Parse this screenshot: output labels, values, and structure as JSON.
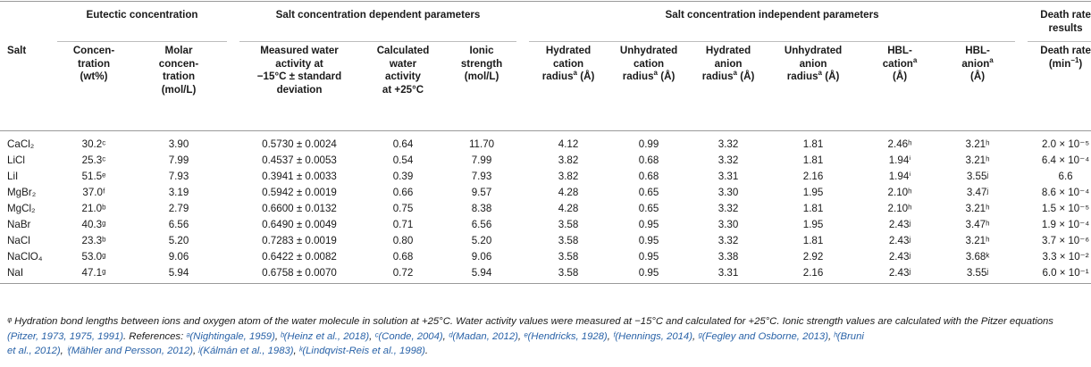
{
  "groups": {
    "eutectic": "Eutectic concentration",
    "dependent": "Salt concentration dependent parameters",
    "independent": "Salt concentration independent parameters",
    "death": "Death rate results"
  },
  "columns": {
    "salt": "Salt",
    "conc": "Concen-tration (wt%)",
    "molar": "Molar concen-tration (mol/L)",
    "measured": "Measured water activity at −15°C ± standard deviation",
    "calc": "Calculated water activity at +25°C",
    "ionic": "Ionic strength (mol/L)",
    "hyd_cation": "Hydrated cation radiusᵃ (Å)",
    "unhyd_cation": "Unhydrated cation radiusᵃ (Å)",
    "hyd_anion": "Hydrated anion radiusᵃ (Å)",
    "unhyd_anion": "Unhydrated anion radiusᵃ (Å)",
    "hbl_cation": "HBL-cationᵃ (Å)",
    "hbl_anion": "HBL-anionᵃ (Å)",
    "death_rate": "Death rate (min⁻¹)"
  },
  "rows": [
    {
      "salt": "CaCl₂",
      "conc": "30.2ᶜ",
      "molar": "3.90",
      "measured": "0.5730 ± 0.0024",
      "calc": "0.64",
      "ionic": "11.70",
      "hyd_cation": "4.12",
      "unhyd_cation": "0.99",
      "hyd_anion": "3.32",
      "unhyd_anion": "1.81",
      "hbl_cation": "2.46ʰ",
      "hbl_anion": "3.21ʰ",
      "death_rate": "2.0 × 10⁻⁵"
    },
    {
      "salt": "LiCl",
      "conc": "25.3ᶜ",
      "molar": "7.99",
      "measured": "0.4537 ± 0.0053",
      "calc": "0.54",
      "ionic": "7.99",
      "hyd_cation": "3.82",
      "unhyd_cation": "0.68",
      "hyd_anion": "3.32",
      "unhyd_anion": "1.81",
      "hbl_cation": "1.94ⁱ",
      "hbl_anion": "3.21ʰ",
      "death_rate": "6.4 × 10⁻⁴"
    },
    {
      "salt": "LiI",
      "conc": "51.5ᵉ",
      "molar": "7.93",
      "measured": "0.3941 ± 0.0033",
      "calc": "0.39",
      "ionic": "7.93",
      "hyd_cation": "3.82",
      "unhyd_cation": "0.68",
      "hyd_anion": "3.31",
      "unhyd_anion": "2.16",
      "hbl_cation": "1.94ⁱ",
      "hbl_anion": "3.55ʲ",
      "death_rate": "6.6"
    },
    {
      "salt": "MgBr₂",
      "conc": "37.0ᶠ",
      "molar": "3.19",
      "measured": "0.5942 ± 0.0019",
      "calc": "0.66",
      "ionic": "9.57",
      "hyd_cation": "4.28",
      "unhyd_cation": "0.65",
      "hyd_anion": "3.30",
      "unhyd_anion": "1.95",
      "hbl_cation": "2.10ʰ",
      "hbl_anion": "3.47ʲ",
      "death_rate": "8.6 × 10⁻⁴"
    },
    {
      "salt": "MgCl₂",
      "conc": "21.0ᵇ",
      "molar": "2.79",
      "measured": "0.6600 ± 0.0132",
      "calc": "0.75",
      "ionic": "8.38",
      "hyd_cation": "4.28",
      "unhyd_cation": "0.65",
      "hyd_anion": "3.32",
      "unhyd_anion": "1.81",
      "hbl_cation": "2.10ʰ",
      "hbl_anion": "3.21ʰ",
      "death_rate": "1.5 × 10⁻⁵"
    },
    {
      "salt": "NaBr",
      "conc": "40.3ᵍ",
      "molar": "6.56",
      "measured": "0.6490 ± 0.0049",
      "calc": "0.71",
      "ionic": "6.56",
      "hyd_cation": "3.58",
      "unhyd_cation": "0.95",
      "hyd_anion": "3.30",
      "unhyd_anion": "1.95",
      "hbl_cation": "2.43ʲ",
      "hbl_anion": "3.47ʰ",
      "death_rate": "1.9 × 10⁻⁴"
    },
    {
      "salt": "NaCl",
      "conc": "23.3ᵇ",
      "molar": "5.20",
      "measured": "0.7283 ± 0.0019",
      "calc": "0.80",
      "ionic": "5.20",
      "hyd_cation": "3.58",
      "unhyd_cation": "0.95",
      "hyd_anion": "3.32",
      "unhyd_anion": "1.81",
      "hbl_cation": "2.43ʲ",
      "hbl_anion": "3.21ʰ",
      "death_rate": "3.7 × 10⁻⁶"
    },
    {
      "salt": "NaClO₄",
      "conc": "53.0ᵍ",
      "molar": "9.06",
      "measured": "0.6422 ± 0.0082",
      "calc": "0.68",
      "ionic": "9.06",
      "hyd_cation": "3.58",
      "unhyd_cation": "0.95",
      "hyd_anion": "3.38",
      "unhyd_anion": "2.92",
      "hbl_cation": "2.43ʲ",
      "hbl_anion": "3.68ᵏ",
      "death_rate": "3.3 × 10⁻²"
    },
    {
      "salt": "NaI",
      "conc": "47.1ᵍ",
      "molar": "5.94",
      "measured": "0.6758 ± 0.0070",
      "calc": "0.72",
      "ionic": "5.94",
      "hyd_cation": "3.58",
      "unhyd_cation": "0.95",
      "hyd_anion": "3.31",
      "unhyd_anion": "2.16",
      "hbl_cation": "2.43ʲ",
      "hbl_anion": "3.55ʲ",
      "death_rate": "6.0 × 10⁻¹"
    }
  ],
  "footnote": {
    "line1": "ᵠ Hydration bond lengths between ions and oxygen atom of the water molecule in solution at +25°C. Water activity values were measured at −15°C and calculated for +25°C. Ionic strength values are calculated with",
    "pitzer_intro": "the Pitzer equations ",
    "pitzer_ref": "(Pitzer, 1973, 1975, 1991)",
    "refs_label": ". References: ",
    "ref_a": "ᵃ(Nightingale, 1959)",
    "ref_b": "ᵇ(Heinz et al., 2018)",
    "ref_c": "ᶜ(Conde, 2004)",
    "ref_d": "ᵈ(Madan, 2012)",
    "ref_e": "ᵉ(Hendricks, 1928)",
    "ref_f": "ᶠ(Hennings, 2014)",
    "ref_g": "ᵍ(Fegley and Osborne, 2013)",
    "ref_h": "ʰ(Bruni",
    "ref_h2": "et al., 2012)",
    "ref_i": "ⁱ(Mähler and Persson, 2012)",
    "ref_j": "ʲ(Kálmán et al., 1983)",
    "ref_k": "ᵏ(Lindqvist-Reis et al., 1998)",
    "sep": ", ",
    "end": "."
  }
}
